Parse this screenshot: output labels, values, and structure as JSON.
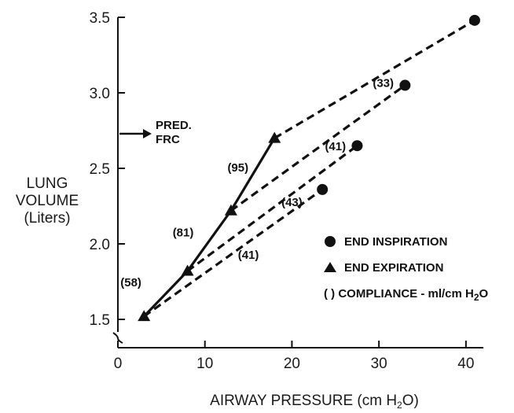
{
  "chart_data": {
    "type": "line",
    "title": "",
    "xlabel": "AIRWAY PRESSURE (cm H",
    "xlabel_sub": "2",
    "xlabel_end": "O)",
    "ylabel": [
      "LUNG",
      "VOLUME",
      "(Liters)"
    ],
    "xlim": [
      0,
      42
    ],
    "ylim": [
      1.5,
      3.5
    ],
    "x_ticks": [
      "0",
      "10",
      "20",
      "30",
      "40"
    ],
    "y_ticks": [
      "1.5",
      "2.0",
      "2.5",
      "3.0",
      "3.5"
    ],
    "grid": false,
    "axis_break": true,
    "colors": {
      "ink": "#111111"
    },
    "end_expiration_curve": {
      "x": [
        3,
        8,
        13,
        18
      ],
      "y": [
        1.52,
        1.82,
        2.22,
        2.7
      ]
    },
    "end_expiration_points": [
      {
        "x": 3,
        "y": 1.52
      },
      {
        "x": 8,
        "y": 1.82
      },
      {
        "x": 13,
        "y": 2.22
      },
      {
        "x": 18,
        "y": 2.7
      }
    ],
    "end_inspiration_points": [
      {
        "x": 23.5,
        "y": 2.36
      },
      {
        "x": 27.5,
        "y": 2.65
      },
      {
        "x": 33,
        "y": 3.05
      },
      {
        "x": 41,
        "y": 3.48
      }
    ],
    "compliance_lines": [
      {
        "x": [
          3,
          23.5
        ],
        "y": [
          1.52,
          2.36
        ]
      },
      {
        "x": [
          8,
          27.5
        ],
        "y": [
          1.82,
          2.65
        ]
      },
      {
        "x": [
          13,
          33
        ],
        "y": [
          2.22,
          3.05
        ]
      },
      {
        "x": [
          18,
          41
        ],
        "y": [
          2.7,
          3.48
        ]
      }
    ],
    "annotations": [
      {
        "text": "(58)",
        "x": 1.5,
        "y": 1.72
      },
      {
        "text": "(81)",
        "x": 7.5,
        "y": 2.05
      },
      {
        "text": "(95)",
        "x": 13.8,
        "y": 2.48
      },
      {
        "text": "(41)",
        "x": 15,
        "y": 1.9
      },
      {
        "text": "(43)",
        "x": 20,
        "y": 2.25
      },
      {
        "text": "(41)",
        "x": 25,
        "y": 2.62
      },
      {
        "text": "(33)",
        "x": 30.5,
        "y": 3.04
      }
    ],
    "pred_frc": {
      "label_1": "PRED.",
      "label_2": "FRC",
      "y": 2.74
    },
    "legend": {
      "placement": "lower-right",
      "inspiration": "END  INSPIRATION",
      "expiration": "END  EXPIRATION",
      "compliance_prefix": "(  )  COMPLIANCE - ml/cm H",
      "compliance_sub": "2",
      "compliance_end": "O"
    }
  }
}
